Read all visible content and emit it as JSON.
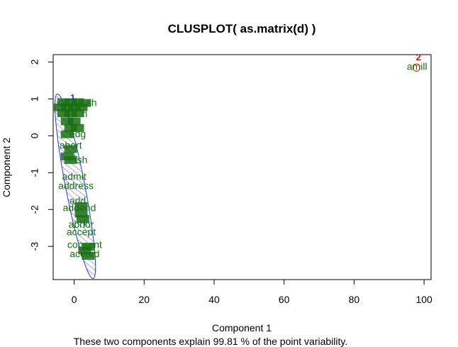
{
  "chart_data": {
    "type": "scatter",
    "title": "CLUSPLOT( as.matrix(d) )",
    "xlabel": "Component 1",
    "ylabel": "Component 2",
    "caption": "These two components explain 99.81 % of the point variability.",
    "xlim": [
      -6,
      102
    ],
    "ylim": [
      -3.9,
      2.2
    ],
    "xticks": [
      0,
      20,
      40,
      60,
      80,
      100
    ],
    "yticks": [
      -3,
      -2,
      -1,
      0,
      1,
      2
    ],
    "colors": {
      "label": "#1a6e12",
      "ellipse_1": "#1f3fe0",
      "ellipse_2": "#b33a00",
      "cluster_num_1": "#1f3fe0",
      "cluster_num_2": "#e01010"
    },
    "clusters": [
      {
        "id": "1",
        "ellipse": {
          "cx": 0.3,
          "cy": -1.37,
          "rx": 2.75,
          "ry": 2.55,
          "angle_deg": 11,
          "shaded": true
        },
        "points": [
          {
            "x": -3,
            "y": 0.92,
            "label": ""
          },
          {
            "x": -1,
            "y": 0.92,
            "label": ""
          },
          {
            "x": 1,
            "y": 0.92,
            "label": ""
          },
          {
            "x": 3,
            "y": 0.9,
            "label": ""
          },
          {
            "x": 5,
            "y": 0.9,
            "label": "sh"
          },
          {
            "x": -4,
            "y": 0.78,
            "label": ""
          },
          {
            "x": -2,
            "y": 0.78,
            "label": ""
          },
          {
            "x": 0,
            "y": 0.78,
            "label": ""
          },
          {
            "x": 2,
            "y": 0.78,
            "label": ""
          },
          {
            "x": -3,
            "y": 0.62,
            "label": ""
          },
          {
            "x": -1,
            "y": 0.62,
            "label": ""
          },
          {
            "x": 1,
            "y": 0.62,
            "label": ""
          },
          {
            "x": 3,
            "y": 0.6,
            "label": "n"
          },
          {
            "x": -2,
            "y": 0.4,
            "label": ""
          },
          {
            "x": 0,
            "y": 0.4,
            "label": ""
          },
          {
            "x": -1,
            "y": 0.22,
            "label": ""
          },
          {
            "x": 1,
            "y": 0.22,
            "label": ""
          },
          {
            "x": -2,
            "y": 0.05,
            "label": ""
          },
          {
            "x": 1,
            "y": 0.05,
            "label": "edg"
          },
          {
            "x": -1,
            "y": -0.25,
            "label": "abort"
          },
          {
            "x": -1,
            "y": -0.35,
            "label": ""
          },
          {
            "x": -2,
            "y": -0.55,
            "label": ""
          },
          {
            "x": 0,
            "y": -0.55,
            "label": "i"
          },
          {
            "x": -1,
            "y": -0.65,
            "label": ""
          },
          {
            "x": 2,
            "y": -0.65,
            "label": "ish"
          },
          {
            "x": 0,
            "y": -1.1,
            "label": "admit"
          },
          {
            "x": 0.5,
            "y": -1.35,
            "label": "address"
          },
          {
            "x": 1,
            "y": -1.75,
            "label": "add"
          },
          {
            "x": 2,
            "y": -1.9,
            "label": ""
          },
          {
            "x": 1.5,
            "y": -1.95,
            "label": "addend"
          },
          {
            "x": 2,
            "y": -2.1,
            "label": ""
          },
          {
            "x": 2.5,
            "y": -2.25,
            "label": ""
          },
          {
            "x": 3,
            "y": -2.35,
            "label": "l"
          },
          {
            "x": 2,
            "y": -2.4,
            "label": "abhor"
          },
          {
            "x": 2,
            "y": -2.6,
            "label": "accept"
          },
          {
            "x": 3,
            "y": -2.95,
            "label": "consent"
          },
          {
            "x": 4,
            "y": -3.0,
            "label": ""
          },
          {
            "x": 3,
            "y": -3.1,
            "label": ""
          },
          {
            "x": 3,
            "y": -3.2,
            "label": "accord"
          },
          {
            "x": 4,
            "y": -3.25,
            "label": ""
          }
        ]
      },
      {
        "id": "2",
        "ellipse": {
          "cx": 97.8,
          "cy": 1.85,
          "rx": 0.9,
          "ry": 0.1,
          "angle_deg": 0,
          "shaded": false
        },
        "points": [
          {
            "x": 98,
            "y": 1.88,
            "label": "amill"
          }
        ]
      }
    ]
  }
}
